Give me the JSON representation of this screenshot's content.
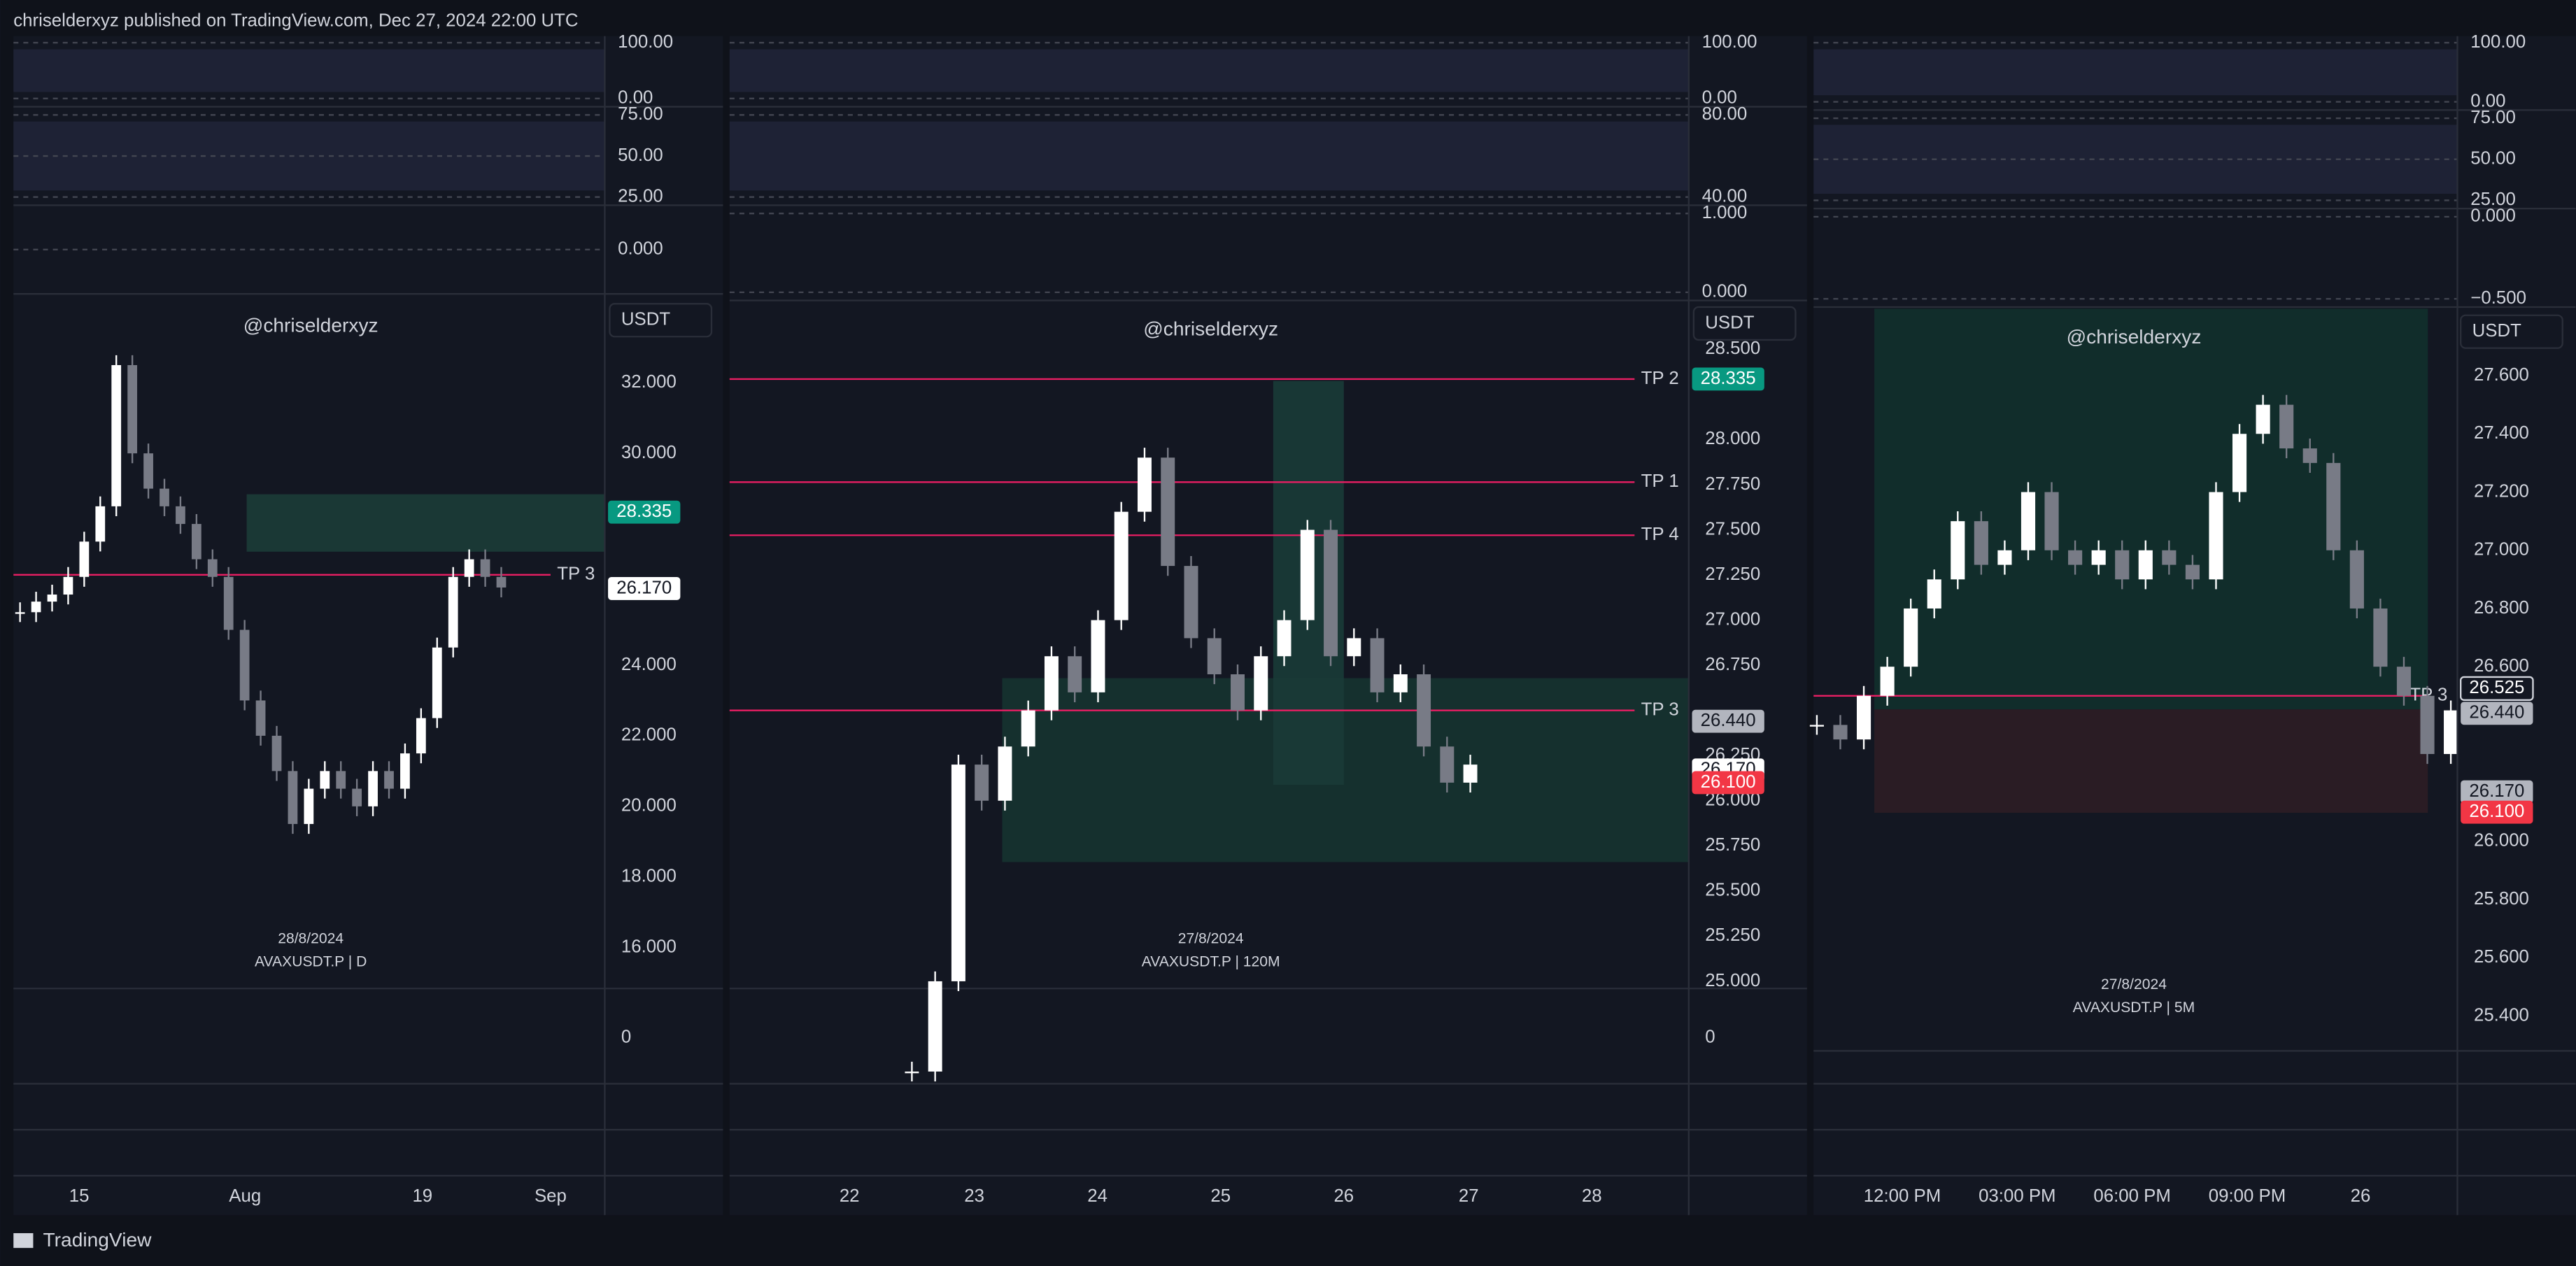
{
  "header": "chriselderxyz published on TradingView.com, Dec 27, 2024 22:00 UTC",
  "footer": "TradingView",
  "panels": [
    {
      "osc_ticks": [
        [
          "100.00",
          "0.00"
        ],
        [
          "75.00",
          "50.00",
          "25.00"
        ],
        [
          "0.000"
        ]
      ],
      "watermark": "@chriselderxyz",
      "currency": "USDT",
      "date_label": "28/8/2024",
      "symbol_label": "AVAXUSDT.P | D",
      "ylim": [
        14.84,
        34.47
      ],
      "yticks": [
        "32.000",
        "30.000",
        "24.000",
        "22.000",
        "20.000",
        "18.000",
        "16.000"
      ],
      "closes": [
        25.5,
        25.8,
        26.0,
        26.5,
        27.5,
        28.5,
        32.5,
        30.0,
        29.0,
        28.5,
        28.0,
        27.0,
        26.5,
        25.0,
        23.0,
        22.0,
        21.0,
        19.5,
        20.5,
        21.0,
        20.5,
        20.0,
        21.0,
        20.5,
        21.5,
        22.5,
        24.5,
        26.5,
        27.0,
        26.5,
        26.2
      ],
      "levels": [
        {
          "label": "TP 3",
          "value": 26.56
        }
      ],
      "price_tags": [
        {
          "text": "28.335",
          "color": "#089981"
        },
        {
          "text": "26.170",
          "color": "#ffffff"
        }
      ],
      "volume_tick": "0",
      "x_labels": [
        "15",
        "Aug",
        "19",
        "Sep"
      ]
    },
    {
      "osc_ticks": [
        [
          "100.00",
          "0.00"
        ],
        [
          "80.00",
          "40.00"
        ],
        [
          "1.000",
          "0.000"
        ]
      ],
      "watermark": "@chriselderxyz",
      "currency": "USDT",
      "date_label": "27/8/2024",
      "symbol_label": "AVAXUSDT.P | 120M",
      "ylim": [
        24.96,
        28.57
      ],
      "yticks": [
        "28.500",
        "28.000",
        "27.750",
        "27.500",
        "27.250",
        "27.000",
        "26.750",
        "26.250",
        "26.000",
        "25.750",
        "25.500",
        "25.250",
        "25.000"
      ],
      "closes": [
        24.5,
        25.0,
        26.2,
        26.0,
        26.3,
        26.5,
        26.8,
        26.6,
        27.0,
        27.6,
        27.9,
        27.3,
        26.9,
        26.7,
        26.5,
        26.8,
        27.0,
        27.5,
        26.8,
        26.9,
        26.6,
        26.7,
        26.3,
        26.1,
        26.2
      ],
      "levels": [
        {
          "label": "TP 2",
          "value": 28.335
        },
        {
          "label": "TP 1",
          "value": 27.764
        },
        {
          "label": "TP 4",
          "value": 27.47
        },
        {
          "label": "TP 3",
          "value": 26.5
        }
      ],
      "price_tags": [
        {
          "text": "28.335",
          "color": "#089981"
        },
        {
          "text": "26.440",
          "color": "#b2b5be"
        },
        {
          "text": "26.170",
          "color": "#ffffff"
        },
        {
          "text": "26.100",
          "color": "#f23645"
        }
      ],
      "volume_tick": "0",
      "x_labels": [
        "22",
        "23",
        "24",
        "25",
        "26",
        "27",
        "28"
      ]
    },
    {
      "osc_ticks": [
        [
          "100.00",
          "0.00"
        ],
        [
          "75.00",
          "50.00",
          "25.00"
        ],
        [
          "0.000",
          "−0.500"
        ]
      ],
      "watermark": "@chriselderxyz",
      "currency": "USDT",
      "date_label": "27/8/2024",
      "symbol_label": "AVAXUSDT.P | 5M",
      "ylim": [
        25.28,
        27.83
      ],
      "yticks": [
        "27.600",
        "27.400",
        "27.200",
        "27.000",
        "26.800",
        "26.600",
        "26.000",
        "25.800",
        "25.600",
        "25.400"
      ],
      "closes": [
        26.4,
        26.35,
        26.5,
        26.6,
        26.8,
        26.9,
        27.1,
        26.95,
        27.0,
        27.2,
        27.0,
        26.95,
        27.0,
        26.9,
        27.0,
        26.95,
        26.9,
        27.2,
        27.4,
        27.5,
        27.35,
        27.3,
        27.0,
        26.8,
        26.6,
        26.5,
        26.3,
        26.45
      ],
      "levels": [
        {
          "label": "TP 3",
          "value": 26.5
        }
      ],
      "price_tags": [
        {
          "text": "26.525",
          "color": "#131722"
        },
        {
          "text": "26.440",
          "color": "#b2b5be"
        },
        {
          "text": "26.170",
          "color": "#b2b5be"
        },
        {
          "text": "26.100",
          "color": "#f23645"
        }
      ],
      "x_labels": [
        "12:00 PM",
        "03:00 PM",
        "06:00 PM",
        "09:00 PM",
        "26"
      ]
    }
  ]
}
